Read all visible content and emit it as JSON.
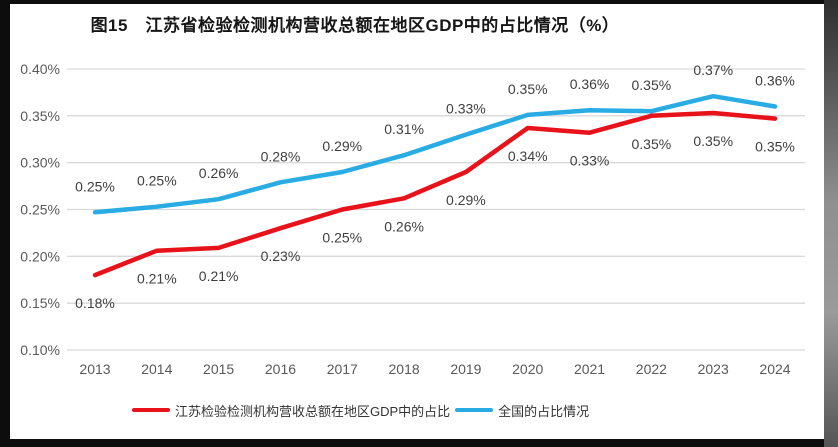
{
  "title": "图15　江苏省检验检测机构营收总额在地区GDP中的占比情况（%）",
  "chart_data": {
    "type": "line",
    "title": "图15　江苏省检验检测机构营收总额在地区GDP中的占比情况（%）",
    "categories": [
      "2013",
      "2014",
      "2015",
      "2016",
      "2017",
      "2018",
      "2019",
      "2020",
      "2021",
      "2022",
      "2023",
      "2024"
    ],
    "y_axis": {
      "tick_labels": [
        "0.10%",
        "0.15%",
        "0.20%",
        "0.25%",
        "0.30%",
        "0.35%",
        "0.40%"
      ],
      "tick_values": [
        0.1,
        0.15,
        0.2,
        0.25,
        0.3,
        0.35,
        0.4
      ],
      "min": 0.1,
      "max": 0.4,
      "unit": "%"
    },
    "grid": true,
    "gridline_color": "#d9d9d9",
    "tick_text_color": "#595959",
    "data_label_color": "#3f3f3f",
    "legend_position": "bottom",
    "series": [
      {
        "name": "江苏检验检测机构营收总额在地区GDP中的占比",
        "color": "#e8121a",
        "label_position": "below",
        "values": [
          0.18,
          0.206,
          0.209,
          0.23,
          0.25,
          0.262,
          0.29,
          0.337,
          0.332,
          0.35,
          0.353,
          0.347
        ],
        "labels": [
          "0.18%",
          "0.21%",
          "0.21%",
          "0.23%",
          "0.25%",
          "0.26%",
          "0.29%",
          "0.34%",
          "0.33%",
          "0.35%",
          "0.35%",
          "0.35%"
        ]
      },
      {
        "name": "全国的占比情况",
        "color": "#29ace3",
        "label_position": "above",
        "values": [
          0.247,
          0.253,
          0.261,
          0.279,
          0.29,
          0.308,
          0.33,
          0.351,
          0.356,
          0.355,
          0.371,
          0.36
        ],
        "labels": [
          "0.25%",
          "0.25%",
          "0.26%",
          "0.28%",
          "0.29%",
          "0.31%",
          "0.33%",
          "0.35%",
          "0.36%",
          "0.35%",
          "0.37%",
          "0.36%"
        ]
      }
    ]
  }
}
